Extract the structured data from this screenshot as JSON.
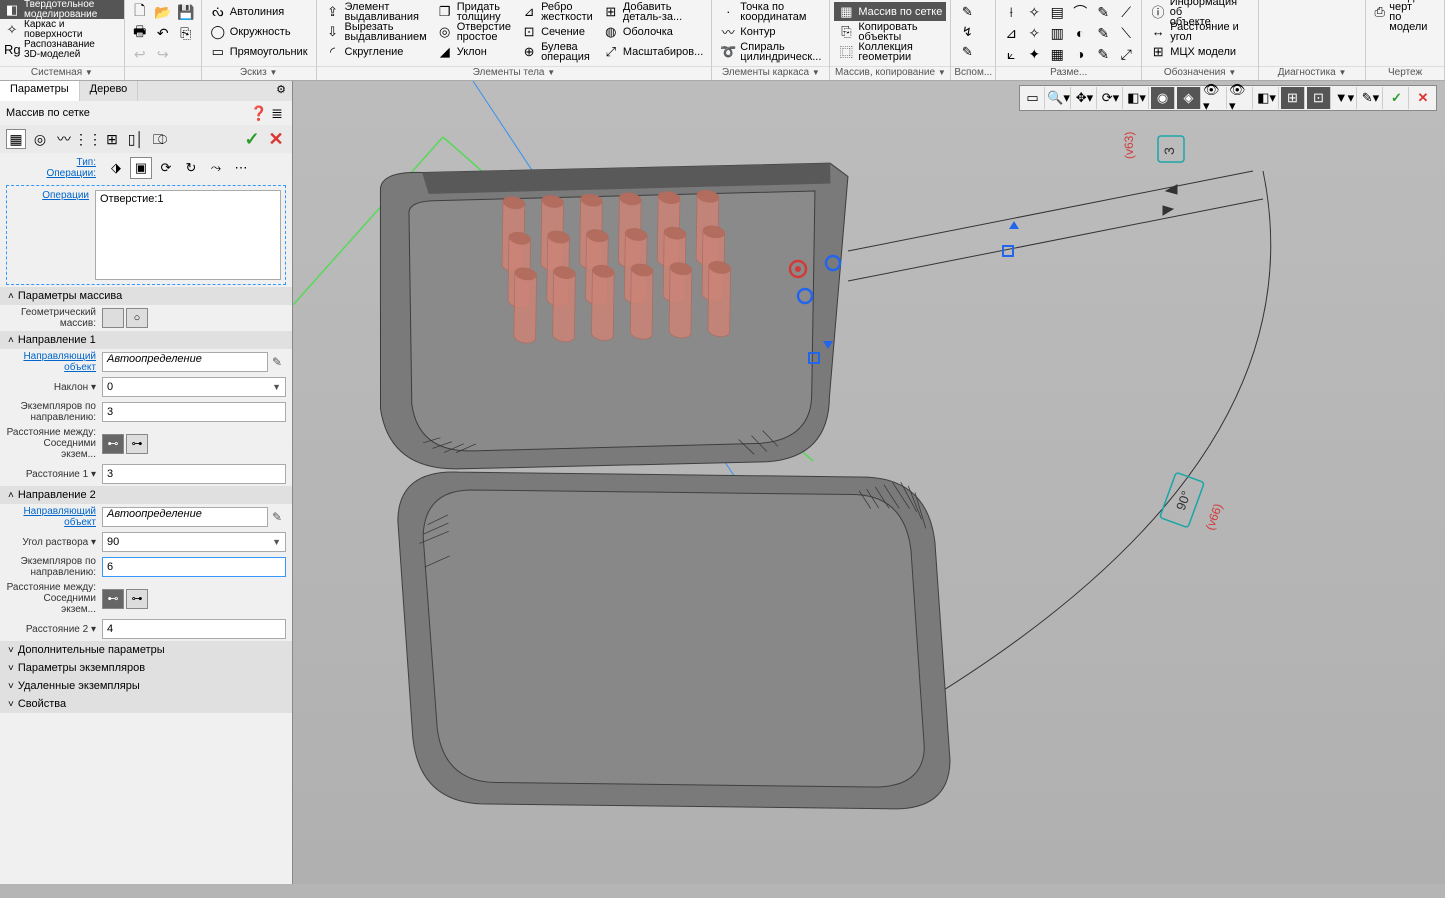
{
  "ribbon": {
    "groups": {
      "mode": {
        "solid": "Твердотельное\nмоделирование",
        "wire": "Каркас и\nповерхности",
        "rec": "Распознавание\n3D-моделей",
        "label": "Системная"
      },
      "sketch": {
        "label": "Эскиз",
        "autoline": "Автолиния",
        "circle": "Окружность",
        "rect": "Прямоугольник"
      },
      "body": {
        "label": "Элементы тела",
        "extrude": "Элемент\nвыдавливания",
        "cut": "Вырезать\nвыдавливанием",
        "fillet": "Скругление",
        "thick": "Придать\nтолщину",
        "holeS": "Отверстие\nпростое",
        "slope": "Уклон",
        "rib": "Ребро\nжесткости",
        "section": "Сечение",
        "bool": "Булева\nоперация",
        "add": "Добавить\nдеталь-за...",
        "shell": "Оболочка",
        "scale": "Масштабиров..."
      },
      "frame": {
        "label": "Элементы каркаса",
        "point": "Точка по\nкоординатам",
        "contour": "Контур",
        "spiral": "Спираль\nцилиндрическ..."
      },
      "array": {
        "label": "Массив, копирование",
        "grid": "Массив по сетке",
        "copy": "Копировать\nобъекты",
        "coll": "Коллекция\nгеометрии"
      },
      "aux": {
        "label": "Вспом..."
      },
      "dim": {
        "label": "Разме..."
      },
      "annot": {
        "label": "Обозначения",
        "info": "Информация об\nобъекте",
        "dist": "Расстояние и\nугол",
        "mcx": "МЦХ модели"
      },
      "diag": {
        "label": "Диагностика"
      },
      "draw": {
        "label": "Чертеж",
        "create": "Создать черт\nпо модели"
      }
    }
  },
  "panel": {
    "tab_params": "Параметры",
    "tab_tree": "Дерево",
    "title": "Массив по сетке",
    "type_lbl": "Тип:",
    "ops_lbl": "Операции:",
    "ops_link": "Операции",
    "ops_item": "Отверстие:1",
    "sec_massparams": "Параметры массива",
    "geom_lbl": "Геометрический\nмассив:",
    "sec_dir1": "Направление 1",
    "sec_dir2": "Направление 2",
    "guide_lbl": "Направляющий\nобъект",
    "guide_val": "Автоопределение",
    "tilt_lbl": "Наклон",
    "tilt_val": "0",
    "angle_lbl": "Угол раствора",
    "angle_val": "90",
    "count_lbl": "Экземпляров по\nнаправлению:",
    "count1": "3",
    "count2": "6",
    "distbtw_lbl": "Расстояние между:",
    "distbtw_sub": "Соседними экзем...",
    "dist1_lbl": "Расстояние 1",
    "dist1_val": "3",
    "dist2_lbl": "Расстояние 2",
    "dist2_val": "4",
    "sec_more": "Дополнительные параметры",
    "sec_inst": "Параметры экземпляров",
    "sec_del": "Удаленные экземпляры",
    "sec_props": "Свойства"
  },
  "viewport": {
    "dim_top": "3",
    "ref63": "(v63)",
    "ref66": "(v66)",
    "angle90": "90°",
    "colors": {
      "part": "#7a7a7a",
      "part_dark": "#595959",
      "pins": "#cc8477",
      "pins_d": "#b06a5c",
      "guide_green": "#58d858",
      "guide_blue": "#3a8ff0",
      "dim_teal": "#1aa6a6",
      "dim_red": "#d23a3a",
      "handle": "#2266ee"
    }
  }
}
